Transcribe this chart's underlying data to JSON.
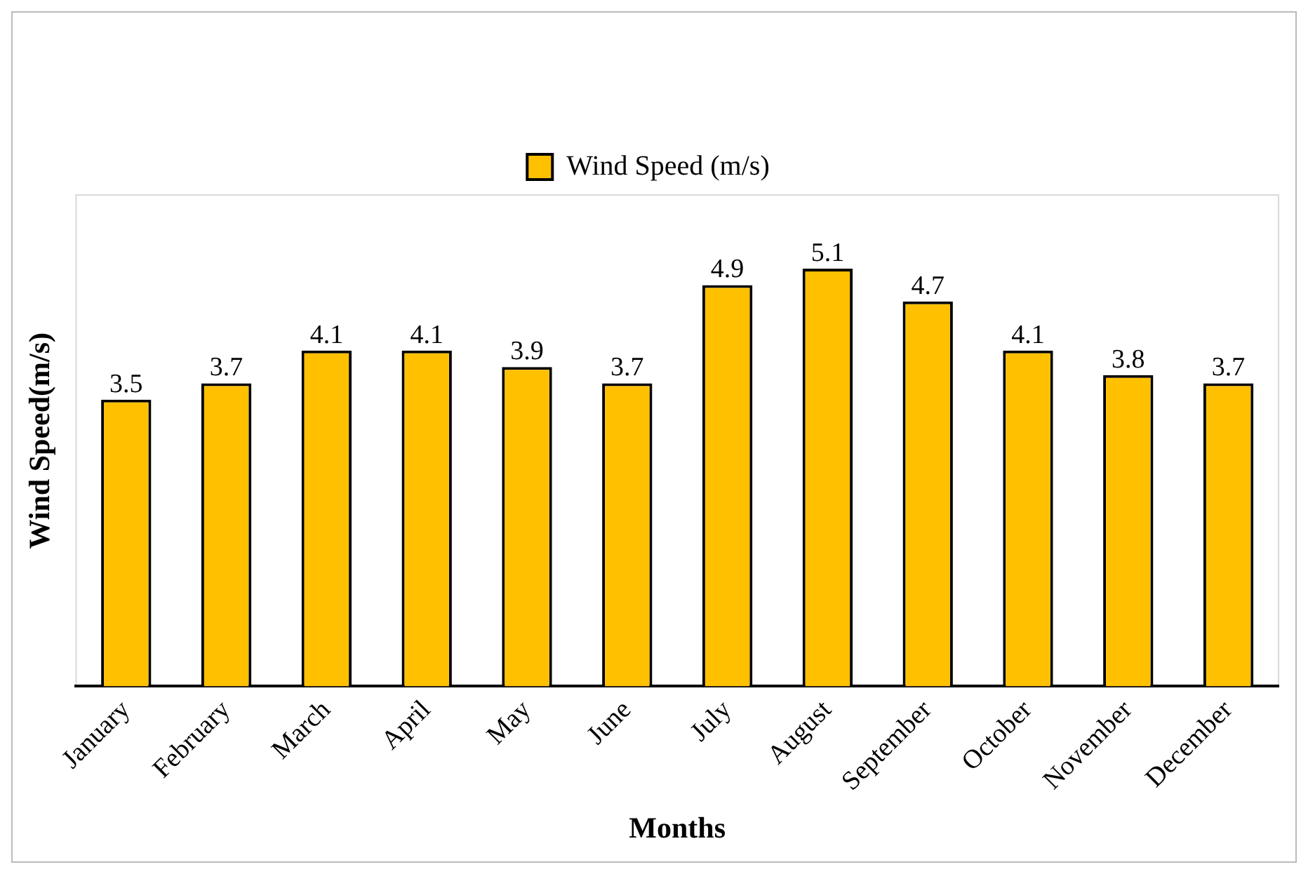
{
  "chart_data": {
    "type": "bar",
    "xlabel": "Months",
    "ylabel": "Wind Speed(m/s)",
    "categories": [
      "January",
      "February",
      "March",
      "April",
      "May",
      "June",
      "July",
      "August",
      "September",
      "October",
      "November",
      "December"
    ],
    "series": [
      {
        "name": "Wind Speed (m/s)",
        "color": "#ffc000",
        "values": [
          3.5,
          3.7,
          4.1,
          4.1,
          3.9,
          3.7,
          4.9,
          5.1,
          4.7,
          4.1,
          3.8,
          3.7
        ]
      }
    ],
    "data_labels": true,
    "legend": "top",
    "grid": false
  }
}
